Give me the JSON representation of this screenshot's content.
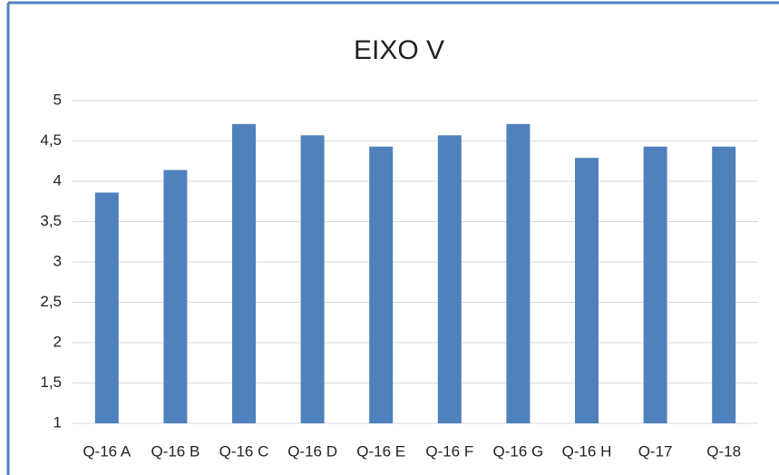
{
  "chart_data": {
    "type": "bar",
    "title": "EIXO V",
    "categories": [
      "Q-16 A",
      "Q-16 B",
      "Q-16 C",
      "Q-16 D",
      "Q-16 E",
      "Q-16 F",
      "Q-16 G",
      "Q-16 H",
      "Q-17",
      "Q-18"
    ],
    "values": [
      3.86,
      4.14,
      4.71,
      4.57,
      4.43,
      4.57,
      4.71,
      4.29,
      4.43,
      4.43
    ],
    "color": "#4f81bd",
    "ylim": [
      1,
      5
    ],
    "yticks": [
      1,
      {
        "value": 1.5,
        "label": "1,5"
      },
      2,
      {
        "value": 2.5,
        "label": "2,5"
      },
      3,
      {
        "value": 3.5,
        "label": "3,5"
      },
      4,
      {
        "value": 4.5,
        "label": "4,5"
      },
      5
    ],
    "grid": true
  }
}
